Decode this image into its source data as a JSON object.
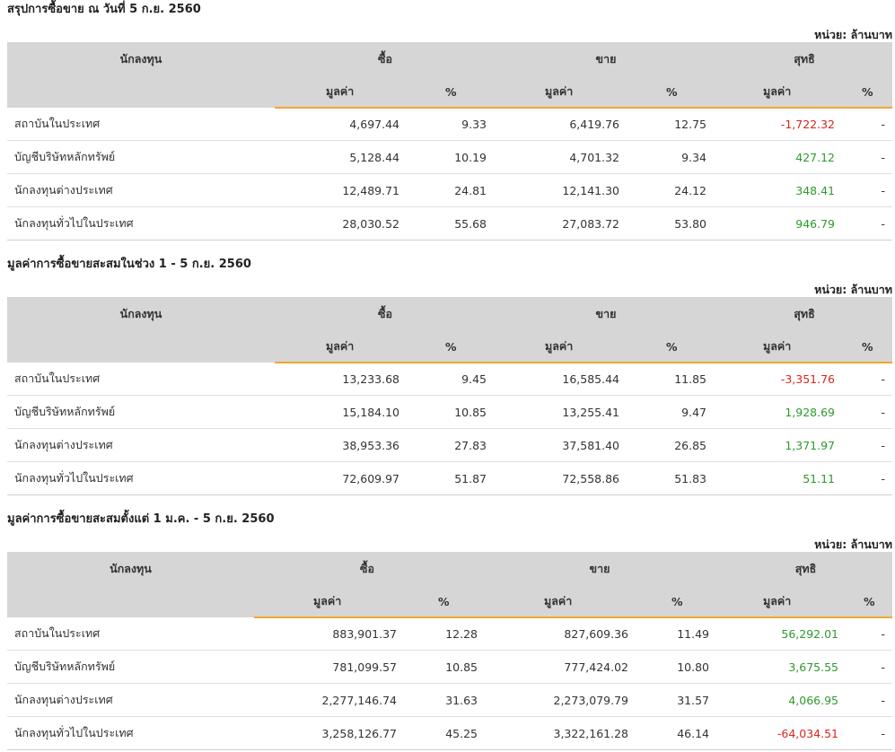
{
  "columns": {
    "investor": "นักลงทุน",
    "buy": "ซื้อ",
    "sell": "ขาย",
    "net": "สุทธิ",
    "value": "มูลค่า",
    "percent": "%"
  },
  "unit_label": "หน่วย: ล้านบาท",
  "sections": [
    {
      "title": "สรุปการซื้อขาย ณ วันที่ 5 ก.ย. 2560",
      "rows": [
        {
          "investor": "สถาบันในประเทศ",
          "buy_value": "4,697.44",
          "buy_pct": "9.33",
          "sell_value": "6,419.76",
          "sell_pct": "12.75",
          "net_value": "-1,722.32",
          "net_pct": "-",
          "net_sign": "neg"
        },
        {
          "investor": "บัญชีบริษัทหลักทรัพย์",
          "buy_value": "5,128.44",
          "buy_pct": "10.19",
          "sell_value": "4,701.32",
          "sell_pct": "9.34",
          "net_value": "427.12",
          "net_pct": "-",
          "net_sign": "pos"
        },
        {
          "investor": "นักลงทุนต่างประเทศ",
          "buy_value": "12,489.71",
          "buy_pct": "24.81",
          "sell_value": "12,141.30",
          "sell_pct": "24.12",
          "net_value": "348.41",
          "net_pct": "-",
          "net_sign": "pos"
        },
        {
          "investor": "นักลงทุนทั่วไปในประเทศ",
          "buy_value": "28,030.52",
          "buy_pct": "55.68",
          "sell_value": "27,083.72",
          "sell_pct": "53.80",
          "net_value": "946.79",
          "net_pct": "-",
          "net_sign": "pos"
        }
      ]
    },
    {
      "title": "มูลค่าการซื้อขายสะสมในช่วง 1 - 5 ก.ย. 2560",
      "rows": [
        {
          "investor": "สถาบันในประเทศ",
          "buy_value": "13,233.68",
          "buy_pct": "9.45",
          "sell_value": "16,585.44",
          "sell_pct": "11.85",
          "net_value": "-3,351.76",
          "net_pct": "-",
          "net_sign": "neg"
        },
        {
          "investor": "บัญชีบริษัทหลักทรัพย์",
          "buy_value": "15,184.10",
          "buy_pct": "10.85",
          "sell_value": "13,255.41",
          "sell_pct": "9.47",
          "net_value": "1,928.69",
          "net_pct": "-",
          "net_sign": "pos"
        },
        {
          "investor": "นักลงทุนต่างประเทศ",
          "buy_value": "38,953.36",
          "buy_pct": "27.83",
          "sell_value": "37,581.40",
          "sell_pct": "26.85",
          "net_value": "1,371.97",
          "net_pct": "-",
          "net_sign": "pos"
        },
        {
          "investor": "นักลงทุนทั่วไปในประเทศ",
          "buy_value": "72,609.97",
          "buy_pct": "51.87",
          "sell_value": "72,558.86",
          "sell_pct": "51.83",
          "net_value": "51.11",
          "net_pct": "-",
          "net_sign": "pos"
        }
      ]
    },
    {
      "title": "มูลค่าการซื้อขายสะสมตั้งแต่ 1 ม.ค. - 5 ก.ย. 2560",
      "rows": [
        {
          "investor": "สถาบันในประเทศ",
          "buy_value": "883,901.37",
          "buy_pct": "12.28",
          "sell_value": "827,609.36",
          "sell_pct": "11.49",
          "net_value": "56,292.01",
          "net_pct": "-",
          "net_sign": "pos"
        },
        {
          "investor": "บัญชีบริษัทหลักทรัพย์",
          "buy_value": "781,099.57",
          "buy_pct": "10.85",
          "sell_value": "777,424.02",
          "sell_pct": "10.80",
          "net_value": "3,675.55",
          "net_pct": "-",
          "net_sign": "pos"
        },
        {
          "investor": "นักลงทุนต่างประเทศ",
          "buy_value": "2,277,146.74",
          "buy_pct": "31.63",
          "sell_value": "2,273,079.79",
          "sell_pct": "31.57",
          "net_value": "4,066.95",
          "net_pct": "-",
          "net_sign": "pos"
        },
        {
          "investor": "นักลงทุนทั่วไปในประเทศ",
          "buy_value": "3,258,126.77",
          "buy_pct": "45.25",
          "sell_value": "3,322,161.28",
          "sell_pct": "46.14",
          "net_value": "-64,034.51",
          "net_pct": "-",
          "net_sign": "neg"
        }
      ]
    }
  ]
}
